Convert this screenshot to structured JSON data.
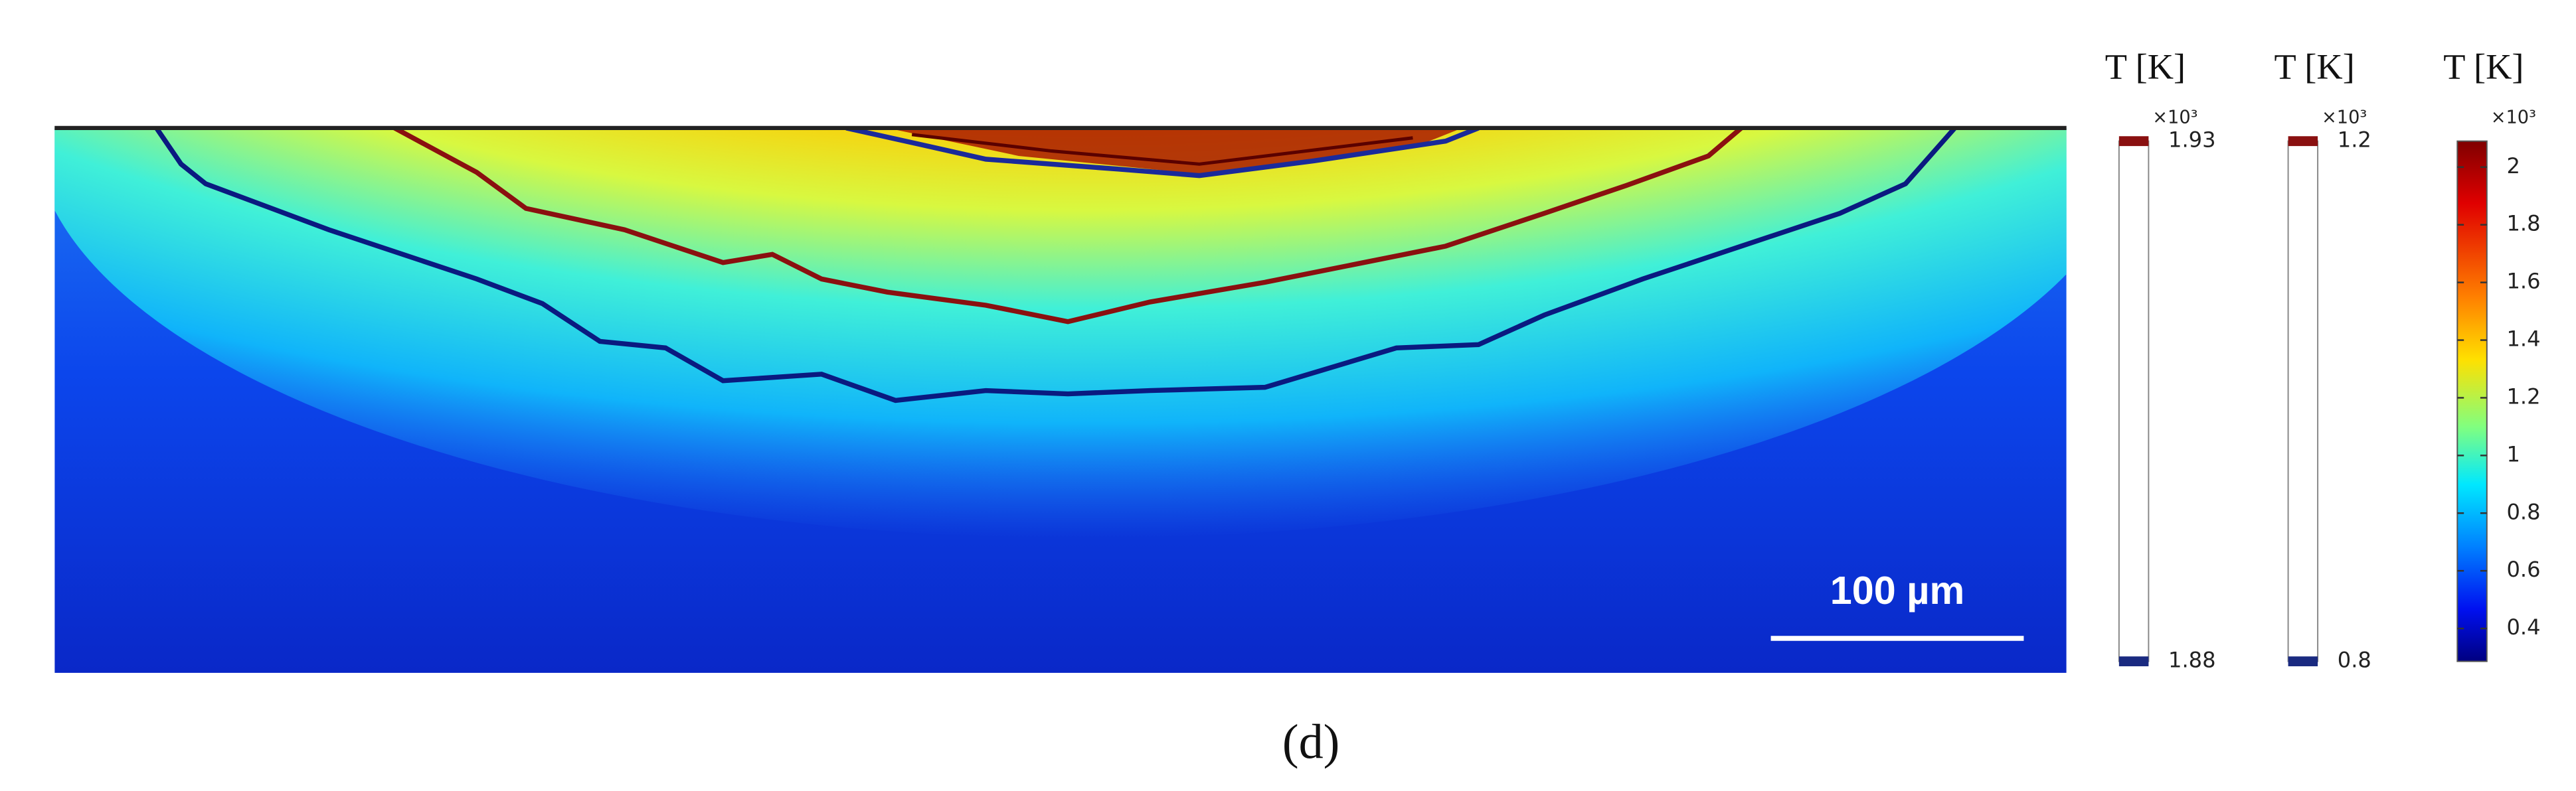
{
  "figure": {
    "panel_label": "(d)",
    "scale_bar": "100 µm",
    "colorbars": [
      {
        "title": "T [K]",
        "multiplier": "×10³",
        "ticks": [
          1.93,
          1.88
        ],
        "style": "contour"
      },
      {
        "title": "T [K]",
        "multiplier": "×10³",
        "ticks": [
          1.2,
          0.8
        ],
        "style": "contour"
      },
      {
        "title": "T [K]",
        "multiplier": "×10³",
        "lim": [
          0.286,
          2.09
        ],
        "ticks": [
          2,
          1.8,
          1.6,
          1.4,
          1.2,
          1,
          0.8,
          0.6,
          0.4
        ],
        "style": "jet"
      }
    ]
  }
}
